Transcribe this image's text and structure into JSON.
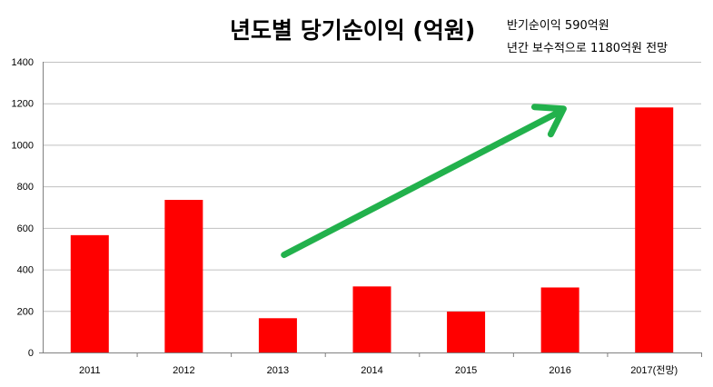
{
  "title": "년도별 당기순이익 (억원)",
  "notes": [
    "반기순이익 590억원",
    "년간 보수적으로 1180억원 전망"
  ],
  "colors": {
    "bar": "#ff0000",
    "arrow": "#22b14c",
    "grid": "#c0c0c0"
  },
  "chart_data": {
    "type": "bar",
    "title": "년도별 당기순이익 (억원)",
    "xlabel": "",
    "ylabel": "",
    "categories": [
      "2011",
      "2012",
      "2013",
      "2014",
      "2015",
      "2016",
      "2017(전망)"
    ],
    "values": [
      565,
      735,
      165,
      318,
      197,
      313,
      1180
    ],
    "ylim": [
      0,
      1400
    ],
    "yticks": [
      "0",
      "200",
      "400",
      "600",
      "800",
      "1000",
      "1200",
      "1400"
    ],
    "grid": true,
    "legend": "none",
    "annotation": "upward trend arrow toward 2017"
  }
}
